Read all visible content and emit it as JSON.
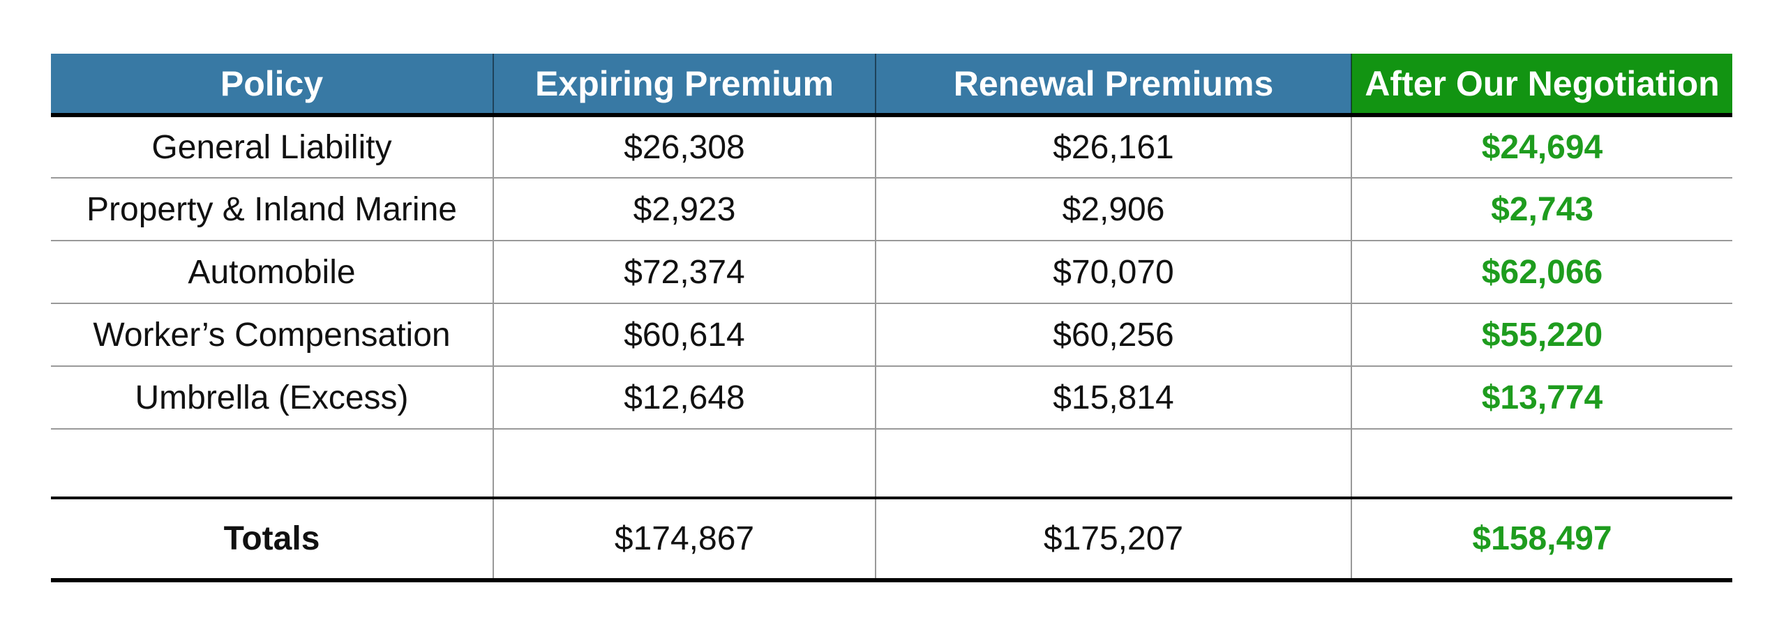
{
  "colors": {
    "header_blue": "#3879A4",
    "header_green": "#129412",
    "negotiated_green": "#1E9C1E",
    "grid_gray": "#999999",
    "line_black": "#000000",
    "body_text": "#111111"
  },
  "table": {
    "headers": [
      "Policy",
      "Expiring Premium",
      "Renewal Premiums",
      "After Our Negotiation"
    ],
    "rows": [
      {
        "cells": [
          "General Liability",
          "$26,308",
          "$26,161",
          "$24,694"
        ]
      },
      {
        "cells": [
          "Property & Inland Marine",
          "$2,923",
          "$2,906",
          "$2,743"
        ]
      },
      {
        "cells": [
          "Automobile",
          "$72,374",
          "$70,070",
          "$62,066"
        ]
      },
      {
        "cells": [
          "Worker’s Compensation",
          "$60,614",
          "$60,256",
          "$55,220"
        ]
      },
      {
        "cells": [
          "Umbrella (Excess)",
          "$12,648",
          "$15,814",
          "$13,774"
        ]
      }
    ],
    "totals": {
      "cells": [
        "Totals",
        "$174,867",
        "$175,207",
        "$158,497"
      ]
    }
  },
  "chart_data": {
    "type": "table",
    "title": "",
    "columns": [
      "Policy",
      "Expiring Premium",
      "Renewal Premiums",
      "After Our Negotiation"
    ],
    "categories": [
      "General Liability",
      "Property & Inland Marine",
      "Automobile",
      "Worker’s Compensation",
      "Umbrella (Excess)"
    ],
    "series": [
      {
        "name": "Expiring Premium",
        "values": [
          26308,
          2923,
          72374,
          60614,
          12648
        ],
        "total": 174867
      },
      {
        "name": "Renewal Premiums",
        "values": [
          26161,
          2906,
          70070,
          60256,
          15814
        ],
        "total": 175207
      },
      {
        "name": "After Our Negotiation",
        "values": [
          24694,
          2743,
          62066,
          55220,
          13774
        ],
        "total": 158497
      }
    ],
    "totals_row_label": "Totals",
    "layout": {
      "header_fill_cols_1_3": "#3879A4",
      "header_fill_col_4": "#129412",
      "negotiated_column_text_color": "#1E9C1E",
      "grid": "horizontal gray separators, gray column dividers, black rule under header and around totals row"
    }
  }
}
